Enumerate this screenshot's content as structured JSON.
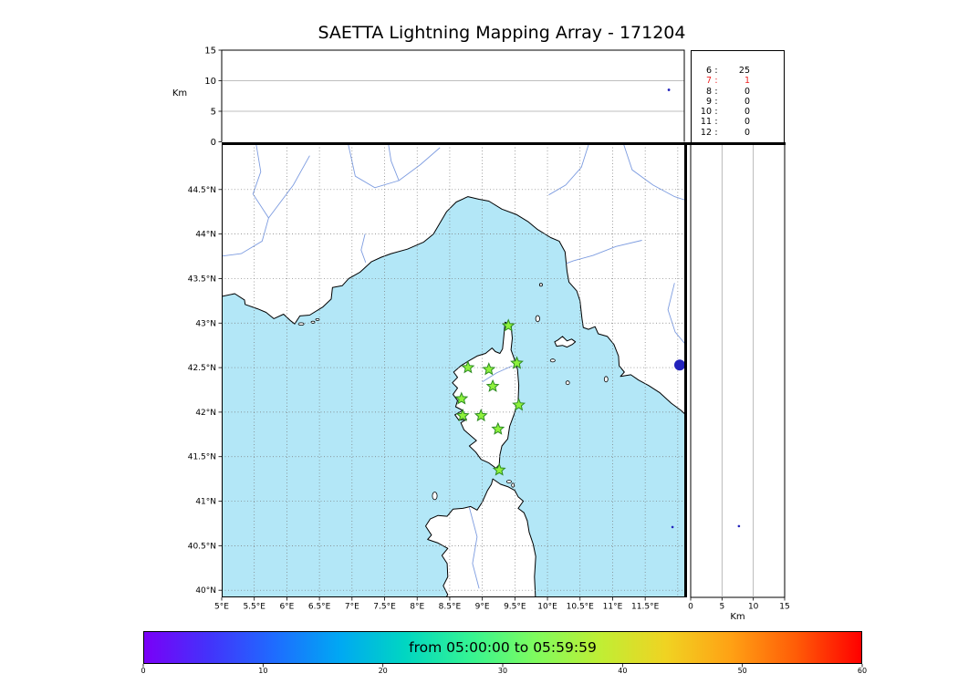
{
  "chart_data": {
    "type": "scatter",
    "title": "SAETTA Lightning Mapping Array - 171204",
    "date": "171204",
    "colors": {
      "sea": "#b3e7f7",
      "land": "#ffffff",
      "coast": "#000000",
      "river": "#7d9ce0",
      "grid": "#777777",
      "star_fill": "#8ef13c",
      "star_edge": "#2c8a22",
      "source_point": "#2222bb",
      "highlight_stat": "#ee2222"
    },
    "alt_time_panel": {
      "ylabel": "Km",
      "ylim": [
        0,
        15
      ],
      "yticks": [
        0,
        5,
        10,
        15
      ],
      "grid_y": [
        5,
        10
      ],
      "time_minutes_range": [
        0,
        60
      ],
      "points": [
        {
          "t_min": 58.0,
          "alt_km": 8.5
        }
      ]
    },
    "station_counts": [
      {
        "station": "6",
        "count": "25",
        "highlight": false
      },
      {
        "station": "7",
        "count": "1",
        "highlight": true
      },
      {
        "station": "8",
        "count": "0",
        "highlight": false
      },
      {
        "station": "9",
        "count": "0",
        "highlight": false
      },
      {
        "station": "10",
        "count": "0",
        "highlight": false
      },
      {
        "station": "11",
        "count": "0",
        "highlight": false
      },
      {
        "station": "12",
        "count": "0",
        "highlight": false
      }
    ],
    "map_panel": {
      "lon_range": [
        5.0,
        12.1
      ],
      "lat_range": [
        39.92,
        45.01
      ],
      "lon_ticks": [
        {
          "v": 5,
          "label": "5°E"
        },
        {
          "v": 5.5,
          "label": "5.5°E"
        },
        {
          "v": 6,
          "label": "6°E"
        },
        {
          "v": 6.5,
          "label": "6.5°E"
        },
        {
          "v": 7,
          "label": "7°E"
        },
        {
          "v": 7.5,
          "label": "7.5°E"
        },
        {
          "v": 8,
          "label": "8°E"
        },
        {
          "v": 8.5,
          "label": "8.5°E"
        },
        {
          "v": 9,
          "label": "9°E"
        },
        {
          "v": 9.5,
          "label": "9.5°E"
        },
        {
          "v": 10,
          "label": "10°E"
        },
        {
          "v": 10.5,
          "label": "10.5°E"
        },
        {
          "v": 11,
          "label": "11°E"
        },
        {
          "v": 11.5,
          "label": "11.5°E"
        }
      ],
      "lat_ticks": [
        {
          "v": 40,
          "label": "40°N"
        },
        {
          "v": 40.5,
          "label": "40.5°N"
        },
        {
          "v": 41,
          "label": "41°N"
        },
        {
          "v": 41.5,
          "label": "41.5°N"
        },
        {
          "v": 42,
          "label": "42°N"
        },
        {
          "v": 42.5,
          "label": "42.5°N"
        },
        {
          "v": 43,
          "label": "43°N"
        },
        {
          "v": 43.5,
          "label": "43.5°N"
        },
        {
          "v": 44,
          "label": "44°N"
        },
        {
          "v": 44.5,
          "label": "44.5°N"
        }
      ],
      "grid_step_deg": 0.5,
      "stations_lonlat": [
        [
          9.4,
          42.97
        ],
        [
          8.78,
          42.5
        ],
        [
          9.1,
          42.48
        ],
        [
          9.53,
          42.55
        ],
        [
          9.16,
          42.29
        ],
        [
          8.68,
          42.15
        ],
        [
          9.56,
          42.08
        ],
        [
          8.7,
          41.96
        ],
        [
          8.98,
          41.96
        ],
        [
          9.24,
          41.81
        ],
        [
          9.26,
          41.35
        ]
      ],
      "source_points": [
        {
          "lon": 12.03,
          "lat": 42.53,
          "r": 6
        },
        {
          "lon": 11.92,
          "lat": 40.71,
          "r": 1.3
        }
      ],
      "coastlines": {
        "mainland": [
          [
            5.0,
            43.3
          ],
          [
            5.2,
            43.33
          ],
          [
            5.35,
            43.26
          ],
          [
            5.36,
            43.21
          ],
          [
            5.55,
            43.16
          ],
          [
            5.68,
            43.12
          ],
          [
            5.8,
            43.05
          ],
          [
            5.95,
            43.1
          ],
          [
            6.05,
            43.03
          ],
          [
            6.12,
            42.99
          ],
          [
            6.2,
            43.08
          ],
          [
            6.35,
            43.09
          ],
          [
            6.55,
            43.18
          ],
          [
            6.68,
            43.27
          ],
          [
            6.7,
            43.4
          ],
          [
            6.85,
            43.42
          ],
          [
            6.95,
            43.5
          ],
          [
            7.12,
            43.57
          ],
          [
            7.3,
            43.69
          ],
          [
            7.45,
            43.74
          ],
          [
            7.6,
            43.78
          ],
          [
            7.85,
            43.83
          ],
          [
            8.1,
            43.91
          ],
          [
            8.25,
            44.0
          ],
          [
            8.45,
            44.25
          ],
          [
            8.6,
            44.36
          ],
          [
            8.78,
            44.42
          ],
          [
            8.95,
            44.39
          ],
          [
            9.1,
            44.37
          ],
          [
            9.3,
            44.28
          ],
          [
            9.52,
            44.22
          ],
          [
            9.7,
            44.14
          ],
          [
            9.85,
            44.05
          ],
          [
            10.05,
            43.96
          ],
          [
            10.18,
            43.92
          ],
          [
            10.27,
            43.8
          ],
          [
            10.3,
            43.58
          ],
          [
            10.33,
            43.46
          ],
          [
            10.45,
            43.36
          ],
          [
            10.5,
            43.25
          ],
          [
            10.53,
            43.05
          ],
          [
            10.55,
            42.95
          ],
          [
            10.63,
            42.93
          ],
          [
            10.73,
            42.96
          ],
          [
            10.78,
            42.88
          ],
          [
            10.92,
            42.85
          ],
          [
            11.02,
            42.76
          ],
          [
            11.09,
            42.63
          ],
          [
            11.1,
            42.52
          ],
          [
            11.18,
            42.45
          ],
          [
            11.12,
            42.4
          ],
          [
            11.28,
            42.42
          ],
          [
            11.4,
            42.36
          ],
          [
            11.55,
            42.3
          ],
          [
            11.72,
            42.22
          ],
          [
            11.9,
            42.1
          ],
          [
            12.05,
            42.02
          ],
          [
            12.2,
            41.92
          ],
          [
            12.2,
            45.1
          ],
          [
            4.9,
            45.1
          ],
          [
            4.9,
            43.3
          ]
        ],
        "corsica": [
          [
            9.35,
            43.01
          ],
          [
            9.44,
            42.98
          ],
          [
            9.46,
            42.83
          ],
          [
            9.44,
            42.7
          ],
          [
            9.49,
            42.6
          ],
          [
            9.54,
            42.48
          ],
          [
            9.56,
            42.3
          ],
          [
            9.55,
            42.12
          ],
          [
            9.49,
            41.98
          ],
          [
            9.42,
            41.84
          ],
          [
            9.39,
            41.7
          ],
          [
            9.3,
            41.62
          ],
          [
            9.27,
            41.52
          ],
          [
            9.26,
            41.41
          ],
          [
            9.21,
            41.37
          ],
          [
            9.1,
            41.43
          ],
          [
            8.98,
            41.47
          ],
          [
            8.9,
            41.55
          ],
          [
            8.8,
            41.62
          ],
          [
            8.91,
            41.68
          ],
          [
            8.83,
            41.73
          ],
          [
            8.72,
            41.8
          ],
          [
            8.67,
            41.88
          ],
          [
            8.76,
            41.92
          ],
          [
            8.64,
            41.91
          ],
          [
            8.58,
            41.97
          ],
          [
            8.7,
            42.02
          ],
          [
            8.59,
            42.06
          ],
          [
            8.62,
            42.13
          ],
          [
            8.55,
            42.2
          ],
          [
            8.62,
            42.27
          ],
          [
            8.54,
            42.33
          ],
          [
            8.62,
            42.39
          ],
          [
            8.56,
            42.45
          ],
          [
            8.67,
            42.52
          ],
          [
            8.78,
            42.57
          ],
          [
            8.92,
            42.63
          ],
          [
            9.05,
            42.66
          ],
          [
            9.15,
            42.72
          ],
          [
            9.2,
            42.68
          ],
          [
            9.27,
            42.66
          ],
          [
            9.31,
            42.71
          ],
          [
            9.33,
            42.85
          ]
        ],
        "sardinia": [
          [
            9.16,
            41.25
          ],
          [
            9.28,
            41.19
          ],
          [
            9.4,
            41.16
          ],
          [
            9.5,
            41.12
          ],
          [
            9.55,
            41.05
          ],
          [
            9.63,
            41.0
          ],
          [
            9.55,
            40.92
          ],
          [
            9.64,
            40.87
          ],
          [
            9.69,
            40.78
          ],
          [
            9.72,
            40.65
          ],
          [
            9.78,
            40.52
          ],
          [
            9.82,
            40.38
          ],
          [
            9.8,
            40.15
          ],
          [
            9.82,
            39.85
          ],
          [
            8.38,
            39.85
          ],
          [
            8.47,
            39.95
          ],
          [
            8.4,
            40.05
          ],
          [
            8.47,
            40.15
          ],
          [
            8.46,
            40.3
          ],
          [
            8.38,
            40.39
          ],
          [
            8.47,
            40.47
          ],
          [
            8.32,
            40.53
          ],
          [
            8.16,
            40.57
          ],
          [
            8.22,
            40.62
          ],
          [
            8.13,
            40.72
          ],
          [
            8.2,
            40.8
          ],
          [
            8.32,
            40.84
          ],
          [
            8.46,
            40.83
          ],
          [
            8.55,
            40.91
          ],
          [
            8.7,
            40.92
          ],
          [
            8.82,
            40.94
          ],
          [
            8.92,
            40.9
          ],
          [
            9.0,
            40.99
          ],
          [
            9.08,
            41.12
          ],
          [
            9.14,
            41.19
          ]
        ],
        "elba": [
          [
            10.11,
            42.79
          ],
          [
            10.14,
            42.74
          ],
          [
            10.23,
            42.75
          ],
          [
            10.3,
            42.73
          ],
          [
            10.38,
            42.76
          ],
          [
            10.43,
            42.79
          ],
          [
            10.37,
            42.82
          ],
          [
            10.3,
            42.8
          ],
          [
            10.23,
            42.85
          ],
          [
            10.16,
            42.81
          ]
        ]
      },
      "small_islands": [
        {
          "name": "porquerolles",
          "lon": 6.22,
          "lat": 42.99,
          "rx": 3,
          "ry": 1.3
        },
        {
          "name": "port-cros",
          "lon": 6.4,
          "lat": 43.01,
          "rx": 2,
          "ry": 1.2
        },
        {
          "name": "levant",
          "lon": 6.47,
          "lat": 43.04,
          "rx": 2,
          "ry": 1
        },
        {
          "name": "capraia",
          "lon": 9.85,
          "lat": 43.05,
          "rx": 2.2,
          "ry": 3.4
        },
        {
          "name": "gorgona",
          "lon": 9.9,
          "lat": 43.43,
          "rx": 1.6,
          "ry": 1.6
        },
        {
          "name": "pianosa",
          "lon": 10.08,
          "lat": 42.58,
          "rx": 2.6,
          "ry": 1.6
        },
        {
          "name": "montecristo",
          "lon": 10.31,
          "lat": 42.33,
          "rx": 2,
          "ry": 2
        },
        {
          "name": "giglio",
          "lon": 10.9,
          "lat": 42.37,
          "rx": 2,
          "ry": 3
        },
        {
          "name": "asinara",
          "lon": 8.27,
          "lat": 41.06,
          "rx": 2.6,
          "ry": 4.2
        },
        {
          "name": "maddalena",
          "lon": 9.41,
          "lat": 41.22,
          "rx": 2.6,
          "ry": 1.5
        },
        {
          "name": "caprera",
          "lon": 9.47,
          "lat": 41.18,
          "rx": 1.5,
          "ry": 2.2
        }
      ],
      "rivers": [
        [
          [
            5.52,
            45.05
          ],
          [
            5.6,
            44.7
          ],
          [
            5.48,
            44.45
          ],
          [
            5.72,
            44.18
          ],
          [
            5.62,
            43.92
          ],
          [
            5.3,
            43.78
          ],
          [
            4.98,
            43.75
          ]
        ],
        [
          [
            6.35,
            44.88
          ],
          [
            6.1,
            44.55
          ],
          [
            5.72,
            44.18
          ]
        ],
        [
          [
            6.93,
            45.05
          ],
          [
            7.05,
            44.65
          ],
          [
            7.35,
            44.52
          ],
          [
            7.72,
            44.6
          ],
          [
            8.05,
            44.78
          ],
          [
            8.35,
            44.97
          ]
        ],
        [
          [
            7.55,
            45.05
          ],
          [
            7.6,
            44.82
          ],
          [
            7.72,
            44.6
          ]
        ],
        [
          [
            7.2,
            44.0
          ],
          [
            7.14,
            43.82
          ],
          [
            7.21,
            43.68
          ]
        ],
        [
          [
            11.45,
            43.93
          ],
          [
            11.05,
            43.86
          ],
          [
            10.7,
            43.76
          ],
          [
            10.4,
            43.7
          ],
          [
            10.29,
            43.67
          ]
        ],
        [
          [
            11.15,
            45.05
          ],
          [
            11.3,
            44.72
          ],
          [
            11.62,
            44.55
          ],
          [
            11.95,
            44.42
          ],
          [
            12.12,
            44.38
          ]
        ],
        [
          [
            11.95,
            43.45
          ],
          [
            11.85,
            43.15
          ],
          [
            11.96,
            42.9
          ],
          [
            12.12,
            42.76
          ]
        ],
        [
          [
            10.65,
            45.05
          ],
          [
            10.52,
            44.75
          ],
          [
            10.28,
            44.55
          ],
          [
            10.02,
            44.44
          ]
        ],
        [
          [
            9.0,
            42.34
          ],
          [
            9.22,
            42.44
          ],
          [
            9.46,
            42.52
          ]
        ],
        [
          [
            8.8,
            40.93
          ],
          [
            8.92,
            40.6
          ],
          [
            8.85,
            40.3
          ],
          [
            8.95,
            40.02
          ]
        ]
      ]
    },
    "alt_lat_panel": {
      "xlabel": "Km",
      "xlim": [
        0,
        15
      ],
      "xticks": [
        0,
        5,
        10,
        15
      ],
      "grid_x": [
        5,
        10
      ],
      "points": [
        {
          "alt_km": 7.7,
          "lat": 40.72,
          "r": 1.3
        }
      ]
    },
    "colorbar": {
      "label": "from 05:00:00 to 05:59:59",
      "range": [
        0,
        60
      ],
      "ticks": [
        0,
        10,
        20,
        30,
        40,
        50,
        60
      ],
      "gradient_stops": [
        "#7a00f7",
        "#4333fb",
        "#1e6cff",
        "#00a8f3",
        "#00d6c2",
        "#35f493",
        "#7ffb5e",
        "#c0ee34",
        "#f0d322",
        "#ffa114",
        "#ff5c07",
        "#ff0000"
      ]
    }
  }
}
